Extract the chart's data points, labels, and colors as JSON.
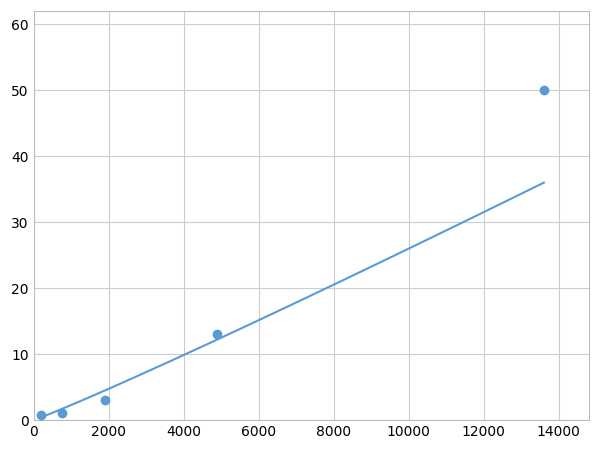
{
  "x_points": [
    200,
    750,
    1900,
    4900,
    13600
  ],
  "y_points": [
    0.7,
    1.0,
    3.0,
    13.0,
    50.0
  ],
  "line_color": "#5B9BD5",
  "marker_color": "#5B9BD5",
  "marker_size": 6,
  "marker_style": "o",
  "line_width": 1.5,
  "xlim": [
    0,
    14800
  ],
  "ylim": [
    0,
    62
  ],
  "xticks": [
    0,
    2000,
    4000,
    6000,
    8000,
    10000,
    12000,
    14000
  ],
  "yticks": [
    0,
    10,
    20,
    30,
    40,
    50,
    60
  ],
  "grid_color": "#CCCCCC",
  "background_color": "#FFFFFF",
  "tick_fontsize": 10,
  "spine_color": "#BBBBBB"
}
